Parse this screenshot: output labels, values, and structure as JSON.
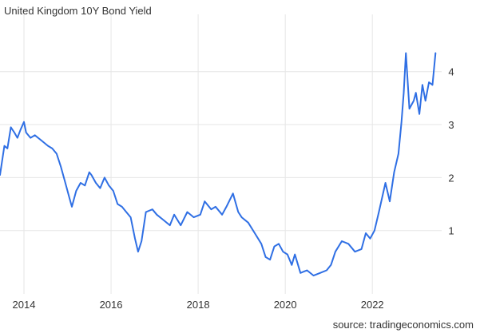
{
  "chart_data": {
    "type": "line",
    "title": "United Kingdom 10Y Bond Yield",
    "source": "source: tradingeconomics.com",
    "xlabel": "",
    "ylabel": "",
    "xlim": [
      2013.45,
      2023.5
    ],
    "ylim": [
      -0.15,
      4.9
    ],
    "x_ticks": [
      2014,
      2016,
      2018,
      2020,
      2022
    ],
    "x_tick_labels": [
      "2014",
      "2016",
      "2018",
      "2020",
      "2022"
    ],
    "y_ticks": [
      1,
      2,
      3,
      4
    ],
    "y_tick_labels": [
      "1",
      "2",
      "3",
      "4"
    ],
    "grid": "vertical and horizontal",
    "legend": "none",
    "line_color": "#2f6fe4",
    "series": [
      {
        "x": [
          2013.45,
          2013.55,
          2013.62,
          2013.7,
          2013.78,
          2013.85,
          2013.92,
          2014.0,
          2014.05,
          2014.15,
          2014.25,
          2014.4,
          2014.55,
          2014.65,
          2014.75,
          2014.85,
          2014.95,
          2015.05,
          2015.1,
          2015.2,
          2015.3,
          2015.4,
          2015.5,
          2015.55,
          2015.65,
          2015.75,
          2015.85,
          2015.95,
          2016.05,
          2016.15,
          2016.25,
          2016.35,
          2016.45,
          2016.55,
          2016.62,
          2016.7,
          2016.8,
          2016.95,
          2017.05,
          2017.2,
          2017.35,
          2017.45,
          2017.6,
          2017.75,
          2017.9,
          2018.05,
          2018.15,
          2018.3,
          2018.4,
          2018.55,
          2018.65,
          2018.8,
          2018.92,
          2019.0,
          2019.15,
          2019.3,
          2019.45,
          2019.55,
          2019.65,
          2019.75,
          2019.85,
          2019.95,
          2020.05,
          2020.15,
          2020.22,
          2020.35,
          2020.5,
          2020.65,
          2020.8,
          2020.95,
          2021.05,
          2021.15,
          2021.3,
          2021.45,
          2021.6,
          2021.75,
          2021.85,
          2021.95,
          2022.05,
          2022.15,
          2022.3,
          2022.4,
          2022.5,
          2022.6,
          2022.67,
          2022.72,
          2022.77,
          2022.85,
          2022.95,
          2023.0,
          2023.08,
          2023.15,
          2023.22,
          2023.3,
          2023.38,
          2023.45
        ],
        "y": [
          2.05,
          2.6,
          2.55,
          2.95,
          2.85,
          2.75,
          2.9,
          3.05,
          2.85,
          2.75,
          2.8,
          2.7,
          2.6,
          2.55,
          2.45,
          2.2,
          1.9,
          1.6,
          1.45,
          1.75,
          1.9,
          1.85,
          2.1,
          2.05,
          1.9,
          1.8,
          2.0,
          1.85,
          1.75,
          1.5,
          1.45,
          1.35,
          1.25,
          0.85,
          0.6,
          0.8,
          1.35,
          1.4,
          1.3,
          1.2,
          1.1,
          1.3,
          1.1,
          1.35,
          1.25,
          1.3,
          1.55,
          1.4,
          1.45,
          1.3,
          1.45,
          1.7,
          1.35,
          1.25,
          1.15,
          0.95,
          0.75,
          0.5,
          0.45,
          0.7,
          0.75,
          0.6,
          0.55,
          0.35,
          0.55,
          0.2,
          0.25,
          0.15,
          0.2,
          0.25,
          0.35,
          0.6,
          0.8,
          0.75,
          0.6,
          0.65,
          0.95,
          0.85,
          1.0,
          1.35,
          1.9,
          1.55,
          2.1,
          2.45,
          3.05,
          3.6,
          4.35,
          3.3,
          3.45,
          3.6,
          3.2,
          3.75,
          3.45,
          3.8,
          3.75,
          4.35
        ]
      }
    ]
  }
}
